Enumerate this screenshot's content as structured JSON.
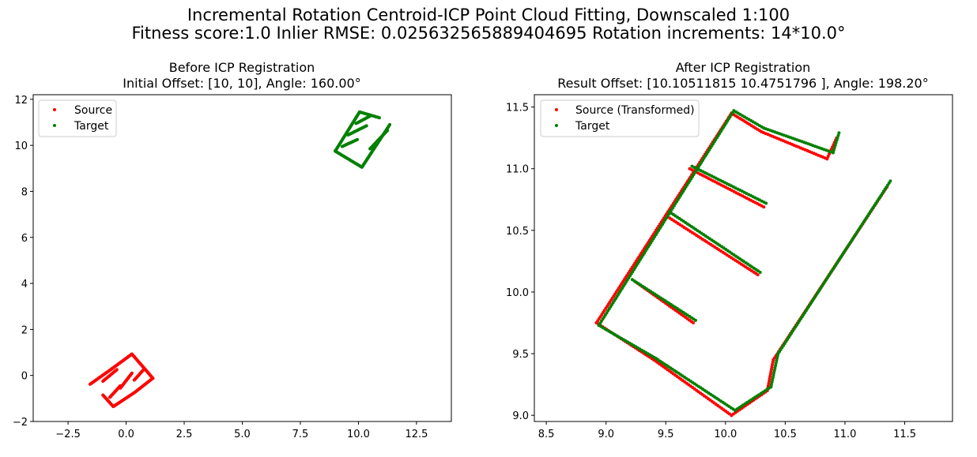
{
  "figure": {
    "suptitle_line1": "Incremental Rotation Centroid-ICP Point Cloud Fitting, Downscaled 1:100",
    "suptitle_line2": "Fitness score:1.0   Inlier RMSE: 0.025632565889404695  Rotation increments: 14*10.0°"
  },
  "colors": {
    "source": "#ff0000",
    "target": "#008000"
  },
  "chart_data": [
    {
      "type": "scatter",
      "title": "Before ICP Registration",
      "subtitle": "Initial Offset: [10, 10], Angle: 160.00°",
      "xlabel": "",
      "ylabel": "",
      "xlim": [
        -4.0,
        14.0
      ],
      "ylim": [
        -2.0,
        12.2
      ],
      "xticks": [
        -2.5,
        0.0,
        2.5,
        5.0,
        7.5,
        10.0,
        12.5
      ],
      "xtick_labels": [
        "−2.5",
        "0.0",
        "2.5",
        "5.0",
        "7.5",
        "10.0",
        "12.5"
      ],
      "yticks": [
        -2,
        0,
        2,
        4,
        6,
        8,
        10,
        12
      ],
      "ytick_labels": [
        "−2",
        "0",
        "2",
        "4",
        "6",
        "8",
        "10",
        "12"
      ],
      "grid": false,
      "legend_position": "upper-left",
      "series": [
        {
          "name": "Source",
          "color": "#ff0000",
          "paths": [
            [
              [
                -1.55,
                -0.38
              ],
              [
                -0.6,
                0.3
              ],
              [
                0.25,
                0.93
              ],
              [
                1.15,
                -0.12
              ],
              [
                0.35,
                -0.75
              ],
              [
                -0.55,
                -1.35
              ],
              [
                -1.0,
                -0.85
              ]
            ],
            [
              [
                -1.0,
                -0.25
              ],
              [
                -0.4,
                0.25
              ]
            ],
            [
              [
                -0.7,
                -0.95
              ],
              [
                -0.25,
                -0.45
              ]
            ],
            [
              [
                -0.25,
                -0.55
              ],
              [
                0.25,
                0.1
              ]
            ],
            [
              [
                0.35,
                -0.2
              ],
              [
                0.75,
                0.25
              ]
            ]
          ]
        },
        {
          "name": "Target",
          "color": "#008000",
          "paths": [
            [
              [
                10.9,
                11.2
              ],
              [
                10.05,
                11.45
              ],
              [
                9.0,
                9.75
              ],
              [
                10.15,
                9.05
              ],
              [
                11.35,
                10.9
              ]
            ],
            [
              [
                9.3,
                9.95
              ],
              [
                9.95,
                10.25
              ]
            ],
            [
              [
                9.55,
                10.45
              ],
              [
                10.35,
                10.85
              ]
            ],
            [
              [
                9.9,
                10.95
              ],
              [
                10.55,
                11.3
              ]
            ],
            [
              [
                10.5,
                9.85
              ],
              [
                11.25,
                10.65
              ]
            ]
          ]
        }
      ]
    },
    {
      "type": "scatter",
      "title": "After ICP Registration",
      "subtitle": "Result Offset: [10.10511815 10.4751796 ], Angle: 198.20°",
      "xlabel": "",
      "ylabel": "",
      "xlim": [
        8.4,
        11.9
      ],
      "ylim": [
        8.95,
        11.6
      ],
      "xticks": [
        8.5,
        9.0,
        9.5,
        10.0,
        10.5,
        11.0,
        11.5
      ],
      "xtick_labels": [
        "8.5",
        "9.0",
        "9.5",
        "10.0",
        "10.5",
        "11.0",
        "11.5"
      ],
      "yticks": [
        9.0,
        9.5,
        10.0,
        10.5,
        11.0,
        11.5
      ],
      "ytick_labels": [
        "9.0",
        "9.5",
        "10.0",
        "10.5",
        "11.0",
        "11.5"
      ],
      "grid": false,
      "legend_position": "upper-left",
      "series": [
        {
          "name": "Source (Transformed)",
          "color": "#ff0000",
          "paths": [
            [
              [
                10.93,
                11.25
              ],
              [
                10.85,
                11.08
              ],
              [
                10.3,
                11.3
              ],
              [
                10.05,
                11.45
              ],
              [
                8.92,
                9.75
              ],
              [
                9.4,
                9.45
              ],
              [
                10.05,
                9.0
              ],
              [
                10.35,
                9.2
              ],
              [
                10.4,
                9.45
              ],
              [
                11.35,
                10.85
              ]
            ],
            [
              [
                9.25,
                10.08
              ],
              [
                9.73,
                9.75
              ]
            ],
            [
              [
                9.5,
                10.62
              ],
              [
                10.27,
                10.14
              ]
            ],
            [
              [
                9.7,
                11.0
              ],
              [
                10.32,
                10.69
              ]
            ]
          ]
        },
        {
          "name": "Target",
          "color": "#008000",
          "paths": [
            [
              [
                10.95,
                11.29
              ],
              [
                10.9,
                11.13
              ],
              [
                10.32,
                11.33
              ],
              [
                10.07,
                11.47
              ],
              [
                8.94,
                9.73
              ],
              [
                9.42,
                9.46
              ],
              [
                10.08,
                9.04
              ],
              [
                10.38,
                9.23
              ],
              [
                10.44,
                9.5
              ],
              [
                11.38,
                10.9
              ]
            ],
            [
              [
                9.22,
                10.1
              ],
              [
                9.75,
                9.77
              ]
            ],
            [
              [
                9.53,
                10.65
              ],
              [
                10.29,
                10.16
              ]
            ],
            [
              [
                9.72,
                11.02
              ],
              [
                10.34,
                10.72
              ]
            ]
          ]
        }
      ]
    }
  ]
}
